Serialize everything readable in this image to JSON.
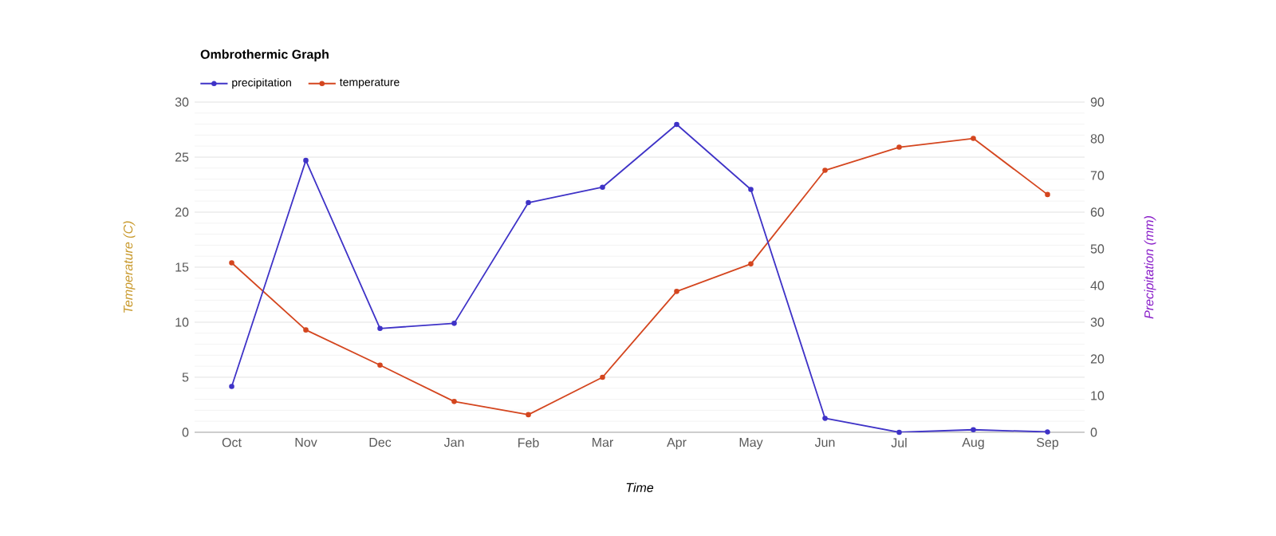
{
  "chart_data": {
    "type": "line",
    "title": "Ombrothermic Graph",
    "xlabel": "Time",
    "ylabel": "Temperature (C)",
    "y2label": "Precipitation (mm)",
    "categories": [
      "Oct",
      "Nov",
      "Dec",
      "Jan",
      "Feb",
      "Mar",
      "Apr",
      "May",
      "Jun",
      "Jul",
      "Aug",
      "Sep"
    ],
    "series": [
      {
        "name": "precipitation",
        "color": "#3f33c7",
        "axis": "y2",
        "values": [
          12.5,
          74.1,
          28.3,
          29.7,
          62.6,
          66.8,
          83.9,
          66.2,
          3.8,
          0,
          0.7,
          0.1
        ]
      },
      {
        "name": "temperature",
        "color": "#d4461f",
        "values": [
          15.4,
          9.3,
          6.1,
          2.8,
          1.6,
          5.0,
          12.8,
          15.3,
          23.8,
          25.9,
          26.7,
          21.6
        ]
      }
    ],
    "ylim": [
      0,
      30
    ],
    "yticks": [
      0,
      5,
      10,
      15,
      20,
      25,
      30
    ],
    "y2lim": [
      0,
      90
    ],
    "y2ticks": [
      0,
      10,
      20,
      30,
      40,
      50,
      60,
      70,
      80,
      90
    ],
    "grid": "y",
    "legend": "top left",
    "marker": "circle",
    "line_style": "solid"
  }
}
